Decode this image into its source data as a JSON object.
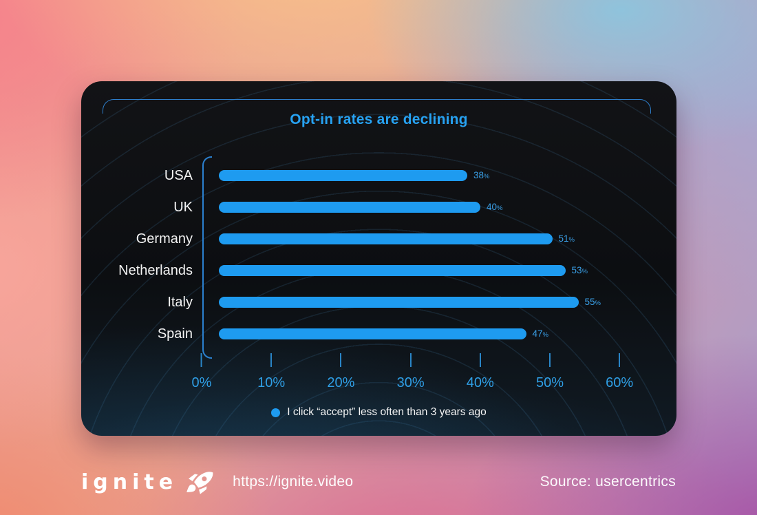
{
  "card": {
    "title": "Opt-in rates are declining"
  },
  "chart_data": {
    "type": "bar",
    "orientation": "horizontal",
    "title": "Opt-in rates are declining",
    "categories": [
      "USA",
      "UK",
      "Germany",
      "Netherlands",
      "Italy",
      "Spain"
    ],
    "values": [
      38,
      40,
      51,
      53,
      55,
      47
    ],
    "value_suffix": "%",
    "x_ticks": [
      "0%",
      "10%",
      "20%",
      "30%",
      "40%",
      "50%",
      "60%"
    ],
    "xlim": [
      0,
      60
    ],
    "grid": false,
    "legend": "I click “accept” less often than 3 years ago",
    "legend_position": "bottom",
    "bar_color": "#1e9bf0",
    "accent_color": "#27a2f2",
    "label_color": "#f3f3f3"
  },
  "footer": {
    "logo": "ignite",
    "url": "https://ignite.video",
    "source": "Source: usercentrics"
  }
}
